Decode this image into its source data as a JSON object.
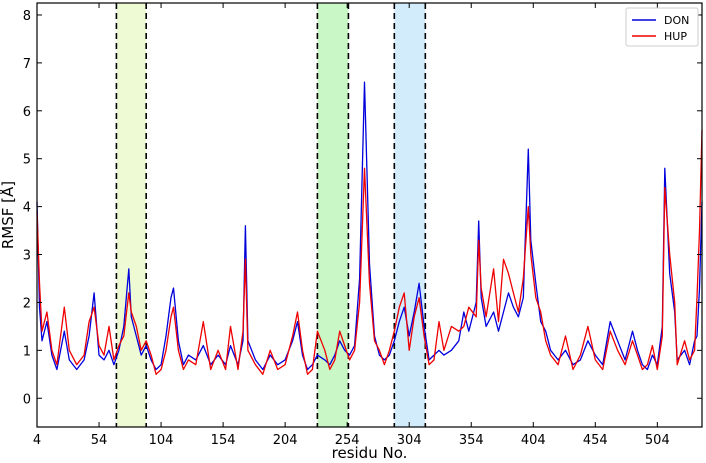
{
  "chart_data": {
    "type": "line",
    "xlabel": "residu No.",
    "ylabel": "RMSF [Å]",
    "xlim": [
      4,
      540
    ],
    "ylim": [
      -0.6,
      8.25
    ],
    "xticks": [
      4,
      54,
      104,
      154,
      204,
      254,
      304,
      354,
      404,
      454,
      504
    ],
    "yticks": [
      0,
      1,
      2,
      3,
      4,
      5,
      6,
      7,
      8
    ],
    "legend_position": "top-right",
    "highlight_regions": [
      {
        "x0": 68,
        "x1": 92,
        "color": "#eefad4"
      },
      {
        "x0": 230,
        "x1": 255,
        "color": "#c9f7c6"
      },
      {
        "x0": 292,
        "x1": 317,
        "color": "#d3ecfb"
      }
    ],
    "series": [
      {
        "name": "DON",
        "color": "#0000dd",
        "points": [
          [
            4,
            4.1
          ],
          [
            6,
            1.9
          ],
          [
            8,
            1.2
          ],
          [
            12,
            1.6
          ],
          [
            16,
            0.9
          ],
          [
            20,
            0.6
          ],
          [
            26,
            1.4
          ],
          [
            30,
            0.8
          ],
          [
            36,
            0.6
          ],
          [
            42,
            0.8
          ],
          [
            46,
            1.3
          ],
          [
            50,
            2.2
          ],
          [
            54,
            0.9
          ],
          [
            58,
            0.8
          ],
          [
            62,
            1.0
          ],
          [
            66,
            0.7
          ],
          [
            70,
            1.0
          ],
          [
            74,
            1.5
          ],
          [
            78,
            2.7
          ],
          [
            80,
            1.7
          ],
          [
            84,
            1.3
          ],
          [
            88,
            0.9
          ],
          [
            92,
            1.1
          ],
          [
            96,
            0.8
          ],
          [
            100,
            0.6
          ],
          [
            104,
            0.7
          ],
          [
            108,
            1.3
          ],
          [
            112,
            2.1
          ],
          [
            114,
            2.3
          ],
          [
            118,
            1.2
          ],
          [
            122,
            0.7
          ],
          [
            126,
            0.9
          ],
          [
            132,
            0.8
          ],
          [
            138,
            1.1
          ],
          [
            144,
            0.7
          ],
          [
            150,
            0.9
          ],
          [
            156,
            0.7
          ],
          [
            160,
            1.1
          ],
          [
            166,
            0.7
          ],
          [
            170,
            1.2
          ],
          [
            172,
            3.6
          ],
          [
            174,
            1.2
          ],
          [
            180,
            0.8
          ],
          [
            186,
            0.6
          ],
          [
            192,
            0.9
          ],
          [
            198,
            0.7
          ],
          [
            204,
            0.8
          ],
          [
            210,
            1.2
          ],
          [
            214,
            1.6
          ],
          [
            218,
            0.9
          ],
          [
            222,
            0.6
          ],
          [
            226,
            0.7
          ],
          [
            230,
            0.9
          ],
          [
            236,
            0.8
          ],
          [
            240,
            0.7
          ],
          [
            244,
            0.9
          ],
          [
            248,
            1.2
          ],
          [
            252,
            1.0
          ],
          [
            256,
            0.9
          ],
          [
            260,
            1.1
          ],
          [
            264,
            2.5
          ],
          [
            268,
            6.6
          ],
          [
            272,
            2.8
          ],
          [
            276,
            1.3
          ],
          [
            280,
            0.9
          ],
          [
            284,
            0.8
          ],
          [
            288,
            0.9
          ],
          [
            292,
            1.2
          ],
          [
            296,
            1.6
          ],
          [
            300,
            1.9
          ],
          [
            304,
            1.3
          ],
          [
            308,
            1.8
          ],
          [
            312,
            2.4
          ],
          [
            316,
            1.5
          ],
          [
            320,
            0.8
          ],
          [
            324,
            0.9
          ],
          [
            328,
            1.0
          ],
          [
            332,
            0.9
          ],
          [
            338,
            1.0
          ],
          [
            344,
            1.2
          ],
          [
            348,
            1.8
          ],
          [
            352,
            1.4
          ],
          [
            358,
            2.0
          ],
          [
            360,
            3.7
          ],
          [
            362,
            2.1
          ],
          [
            366,
            1.5
          ],
          [
            372,
            1.8
          ],
          [
            376,
            1.4
          ],
          [
            380,
            1.8
          ],
          [
            384,
            2.2
          ],
          [
            388,
            1.9
          ],
          [
            392,
            1.7
          ],
          [
            396,
            2.1
          ],
          [
            400,
            5.2
          ],
          [
            402,
            3.3
          ],
          [
            406,
            2.4
          ],
          [
            410,
            1.6
          ],
          [
            414,
            1.4
          ],
          [
            418,
            1.0
          ],
          [
            424,
            0.8
          ],
          [
            430,
            1.0
          ],
          [
            436,
            0.7
          ],
          [
            442,
            0.8
          ],
          [
            448,
            1.2
          ],
          [
            454,
            0.9
          ],
          [
            460,
            0.7
          ],
          [
            466,
            1.6
          ],
          [
            472,
            1.2
          ],
          [
            478,
            0.8
          ],
          [
            484,
            1.4
          ],
          [
            488,
            1.0
          ],
          [
            492,
            0.7
          ],
          [
            496,
            0.6
          ],
          [
            500,
            0.9
          ],
          [
            504,
            0.7
          ],
          [
            508,
            1.5
          ],
          [
            510,
            4.8
          ],
          [
            514,
            2.6
          ],
          [
            518,
            1.8
          ],
          [
            520,
            0.8
          ],
          [
            526,
            1.0
          ],
          [
            530,
            0.7
          ],
          [
            534,
            1.2
          ],
          [
            536,
            1.3
          ],
          [
            538,
            2.3
          ],
          [
            540,
            4.1
          ]
        ]
      },
      {
        "name": "HUP",
        "color": "#ee0000",
        "points": [
          [
            4,
            3.9
          ],
          [
            6,
            2.4
          ],
          [
            8,
            1.4
          ],
          [
            12,
            1.8
          ],
          [
            16,
            1.0
          ],
          [
            20,
            0.7
          ],
          [
            26,
            1.9
          ],
          [
            30,
            1.0
          ],
          [
            36,
            0.7
          ],
          [
            42,
            0.9
          ],
          [
            46,
            1.6
          ],
          [
            50,
            1.9
          ],
          [
            54,
            1.1
          ],
          [
            58,
            0.9
          ],
          [
            62,
            1.5
          ],
          [
            66,
            0.8
          ],
          [
            70,
            1.1
          ],
          [
            74,
            1.3
          ],
          [
            78,
            2.2
          ],
          [
            80,
            1.8
          ],
          [
            84,
            1.5
          ],
          [
            88,
            1.0
          ],
          [
            92,
            1.2
          ],
          [
            96,
            0.9
          ],
          [
            100,
            0.5
          ],
          [
            104,
            0.6
          ],
          [
            108,
            1.0
          ],
          [
            112,
            1.7
          ],
          [
            114,
            1.9
          ],
          [
            118,
            1.0
          ],
          [
            122,
            0.6
          ],
          [
            126,
            0.8
          ],
          [
            132,
            0.7
          ],
          [
            138,
            1.6
          ],
          [
            144,
            0.6
          ],
          [
            150,
            1.0
          ],
          [
            156,
            0.6
          ],
          [
            160,
            1.5
          ],
          [
            166,
            0.6
          ],
          [
            170,
            1.4
          ],
          [
            172,
            2.9
          ],
          [
            174,
            1.0
          ],
          [
            180,
            0.7
          ],
          [
            186,
            0.5
          ],
          [
            192,
            1.0
          ],
          [
            198,
            0.6
          ],
          [
            204,
            0.7
          ],
          [
            210,
            1.3
          ],
          [
            214,
            1.8
          ],
          [
            218,
            1.0
          ],
          [
            222,
            0.5
          ],
          [
            226,
            0.6
          ],
          [
            230,
            1.4
          ],
          [
            236,
            1.0
          ],
          [
            240,
            0.6
          ],
          [
            244,
            0.8
          ],
          [
            248,
            1.4
          ],
          [
            252,
            1.1
          ],
          [
            256,
            0.8
          ],
          [
            260,
            1.0
          ],
          [
            264,
            2.0
          ],
          [
            268,
            4.8
          ],
          [
            272,
            2.4
          ],
          [
            276,
            1.2
          ],
          [
            280,
            1.0
          ],
          [
            284,
            0.7
          ],
          [
            288,
            1.0
          ],
          [
            292,
            1.4
          ],
          [
            296,
            1.9
          ],
          [
            300,
            2.2
          ],
          [
            304,
            1.0
          ],
          [
            308,
            1.7
          ],
          [
            312,
            2.1
          ],
          [
            316,
            1.3
          ],
          [
            320,
            0.7
          ],
          [
            324,
            0.8
          ],
          [
            328,
            1.6
          ],
          [
            332,
            1.0
          ],
          [
            338,
            1.5
          ],
          [
            344,
            1.4
          ],
          [
            348,
            1.5
          ],
          [
            352,
            1.9
          ],
          [
            358,
            1.7
          ],
          [
            360,
            3.3
          ],
          [
            362,
            2.3
          ],
          [
            366,
            1.7
          ],
          [
            372,
            2.7
          ],
          [
            376,
            1.6
          ],
          [
            380,
            2.9
          ],
          [
            384,
            2.6
          ],
          [
            388,
            2.2
          ],
          [
            392,
            1.8
          ],
          [
            396,
            2.5
          ],
          [
            400,
            4.0
          ],
          [
            402,
            3.0
          ],
          [
            406,
            2.1
          ],
          [
            410,
            1.8
          ],
          [
            414,
            1.2
          ],
          [
            418,
            0.9
          ],
          [
            424,
            0.7
          ],
          [
            430,
            1.3
          ],
          [
            436,
            0.6
          ],
          [
            442,
            0.9
          ],
          [
            448,
            1.5
          ],
          [
            454,
            0.8
          ],
          [
            460,
            0.6
          ],
          [
            466,
            1.4
          ],
          [
            472,
            1.0
          ],
          [
            478,
            0.7
          ],
          [
            484,
            1.2
          ],
          [
            488,
            0.9
          ],
          [
            492,
            0.6
          ],
          [
            496,
            0.7
          ],
          [
            500,
            1.1
          ],
          [
            504,
            0.6
          ],
          [
            508,
            1.3
          ],
          [
            510,
            4.4
          ],
          [
            514,
            3.0
          ],
          [
            518,
            2.0
          ],
          [
            520,
            0.7
          ],
          [
            526,
            1.2
          ],
          [
            530,
            0.8
          ],
          [
            534,
            1.0
          ],
          [
            536,
            2.1
          ],
          [
            538,
            3.5
          ],
          [
            540,
            5.6
          ]
        ]
      }
    ]
  }
}
